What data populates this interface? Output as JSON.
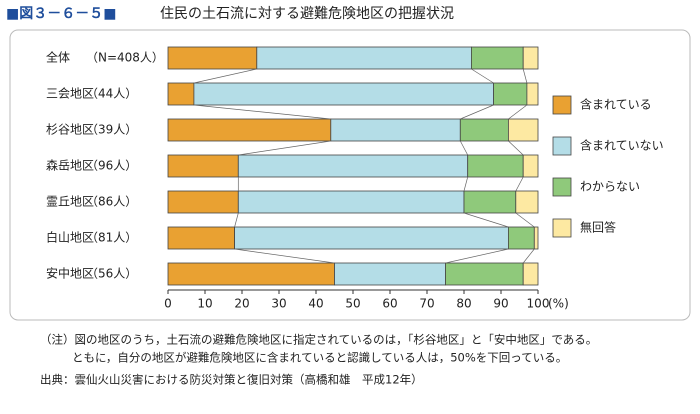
{
  "figure_label": "■図３－６－５■",
  "notes": [
    "（注）図の地区のうち，土石流の避難危険地区に指定されているのは，「杉谷地区」と「安中地区」である。",
    "ともに，自分の地区が避難危険地区に含まれていると認識している人は，50%を下回っている。"
  ],
  "source": "出典：雲仙火山災害における防災対策と復旧対策（高橋和雄　平成12年）",
  "chart_data": {
    "type": "stacked_barh",
    "title": "住民の土石流に対する避難危険地区の把握状況",
    "categories": [
      "全体",
      "三会地区",
      "杉谷地区",
      "森岳地区",
      "霊丘地区",
      "白山地区",
      "安中地区"
    ],
    "counts": [
      "（N=408人）",
      "（44人）",
      "（39人）",
      "（96人）",
      "（86人）",
      "（81人）",
      "（56人）"
    ],
    "series": [
      {
        "name": "含まれている",
        "color": "#e9a132",
        "values": [
          24,
          7,
          44,
          19,
          19,
          18,
          45
        ]
      },
      {
        "name": "含まれていない",
        "color": "#b4dde7",
        "values": [
          58,
          81,
          35,
          62,
          61,
          74,
          30
        ]
      },
      {
        "name": "わからない",
        "color": "#8fc97b",
        "values": [
          14,
          9,
          13,
          15,
          14,
          7,
          21
        ]
      },
      {
        "name": "無回答",
        "color": "#fde9a2",
        "values": [
          4,
          3,
          8,
          4,
          6,
          1,
          4
        ]
      }
    ],
    "xlim": [
      0,
      100
    ],
    "xticks": [
      0,
      10,
      20,
      30,
      40,
      50,
      60,
      70,
      80,
      90,
      100
    ],
    "xunit": "(%)"
  }
}
